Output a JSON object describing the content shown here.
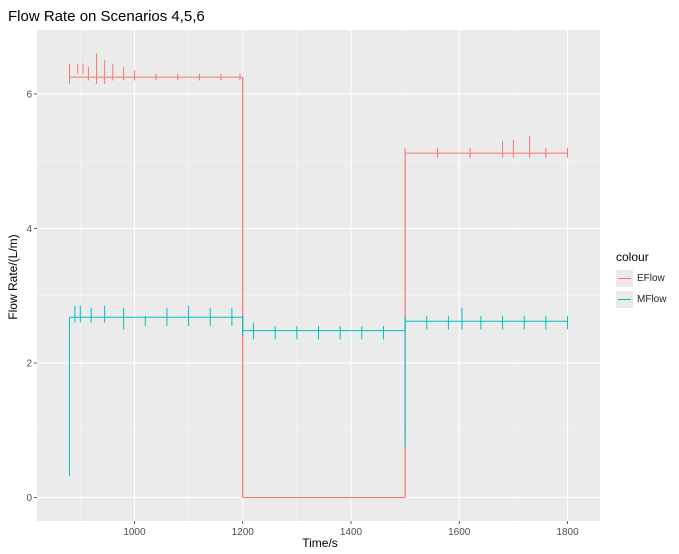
{
  "chart_data": {
    "type": "line",
    "title": "Flow Rate on Scenarios 4,5,6",
    "xlabel": "Time/s",
    "ylabel": "Flow Rate/(L/m)",
    "xlim": [
      820,
      1860
    ],
    "ylim": [
      -0.35,
      6.95
    ],
    "x_ticks": [
      1000,
      1200,
      1400,
      1600,
      1800
    ],
    "y_ticks": [
      0,
      2,
      4,
      6
    ],
    "grid": true,
    "legend": {
      "title": "colour",
      "position": "right"
    },
    "series": [
      {
        "name": "EFlow",
        "color": "#f8766d",
        "segments": [
          {
            "x_start": 880,
            "x_end": 1200,
            "base": 6.25,
            "spikes": [
              [
                880,
                6.45,
                6.15
              ],
              [
                895,
                6.45,
                6.3
              ],
              [
                905,
                6.45,
                6.3
              ],
              [
                915,
                6.4,
                6.2
              ],
              [
                930,
                6.6,
                6.15
              ],
              [
                945,
                6.5,
                6.15
              ],
              [
                960,
                6.45,
                6.2
              ],
              [
                980,
                6.4,
                6.2
              ],
              [
                1000,
                6.35,
                6.2
              ],
              [
                1040,
                6.3,
                6.2
              ],
              [
                1080,
                6.3,
                6.2
              ],
              [
                1120,
                6.3,
                6.2
              ],
              [
                1160,
                6.3,
                6.2
              ],
              [
                1195,
                6.3,
                6.2
              ]
            ]
          },
          {
            "x_start": 1200,
            "x_end": 1500,
            "base": 0.0,
            "spikes": [
              [
                1200,
                6.25,
                0.0
              ]
            ]
          },
          {
            "x_start": 1500,
            "x_end": 1800,
            "base": 5.12,
            "spikes": [
              [
                1500,
                5.2,
                0.0
              ],
              [
                1560,
                5.2,
                5.05
              ],
              [
                1620,
                5.2,
                5.05
              ],
              [
                1680,
                5.3,
                5.05
              ],
              [
                1700,
                5.32,
                5.05
              ],
              [
                1730,
                5.38,
                5.05
              ],
              [
                1760,
                5.2,
                5.05
              ],
              [
                1800,
                5.2,
                5.05
              ]
            ]
          }
        ]
      },
      {
        "name": "MFlow",
        "color": "#00bfc4",
        "segments": [
          {
            "x_start": 880,
            "x_end": 1200,
            "base": 2.68,
            "spikes": [
              [
                880,
                2.68,
                0.32
              ],
              [
                890,
                2.85,
                2.6
              ],
              [
                900,
                2.85,
                2.6
              ],
              [
                920,
                2.82,
                2.6
              ],
              [
                945,
                2.85,
                2.6
              ],
              [
                980,
                2.82,
                2.5
              ],
              [
                1020,
                2.7,
                2.55
              ],
              [
                1060,
                2.82,
                2.55
              ],
              [
                1100,
                2.85,
                2.55
              ],
              [
                1140,
                2.82,
                2.55
              ],
              [
                1180,
                2.82,
                2.55
              ],
              [
                1200,
                2.7,
                2.6
              ]
            ]
          },
          {
            "x_start": 1200,
            "x_end": 1500,
            "base": 2.48,
            "spikes": [
              [
                1200,
                2.68,
                2.4
              ],
              [
                1220,
                2.6,
                2.35
              ],
              [
                1260,
                2.55,
                2.35
              ],
              [
                1300,
                2.55,
                2.35
              ],
              [
                1340,
                2.55,
                2.35
              ],
              [
                1380,
                2.55,
                2.35
              ],
              [
                1420,
                2.55,
                2.35
              ],
              [
                1460,
                2.55,
                2.35
              ],
              [
                1500,
                2.55,
                0.75
              ]
            ]
          },
          {
            "x_start": 1500,
            "x_end": 1800,
            "base": 2.62,
            "spikes": [
              [
                1500,
                2.7,
                2.5
              ],
              [
                1540,
                2.7,
                2.5
              ],
              [
                1580,
                2.7,
                2.5
              ],
              [
                1605,
                2.82,
                2.5
              ],
              [
                1640,
                2.7,
                2.5
              ],
              [
                1680,
                2.7,
                2.5
              ],
              [
                1720,
                2.7,
                2.5
              ],
              [
                1760,
                2.7,
                2.5
              ],
              [
                1800,
                2.7,
                2.5
              ]
            ]
          }
        ]
      }
    ]
  }
}
